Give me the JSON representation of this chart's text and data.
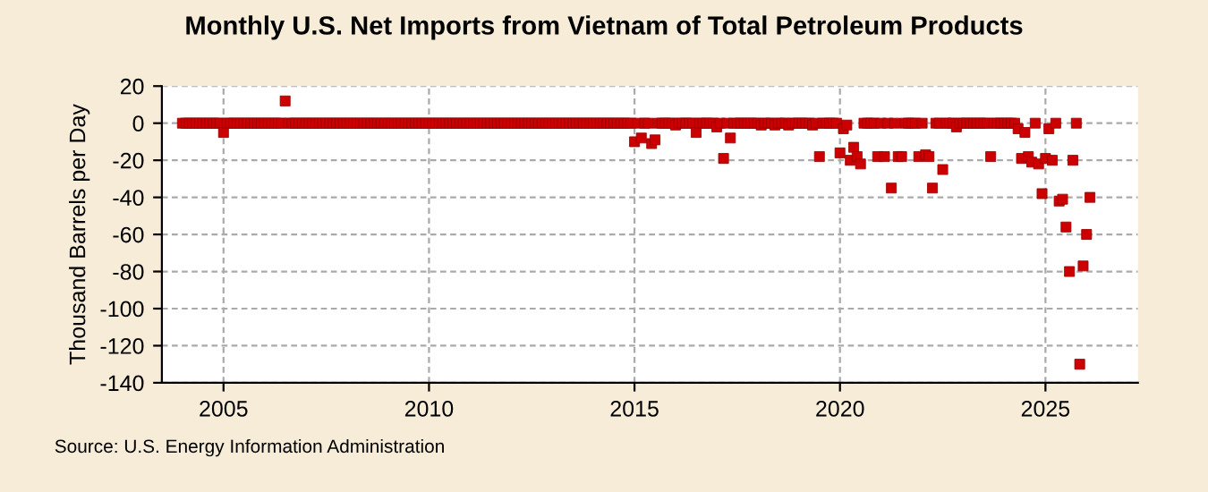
{
  "chart_data": {
    "type": "scatter",
    "title": "Monthly U.S. Net Imports from Vietnam of Total Petroleum Products",
    "ylabel": "Thousand Barrels per Day",
    "annotations": [
      "Source: U.S. Energy Information Administration"
    ],
    "xlim": [
      "2003-07",
      "2027-04"
    ],
    "xticks": [
      "2005",
      "2010",
      "2015",
      "2020",
      "2025"
    ],
    "ylim": [
      -140,
      20
    ],
    "yticks": [
      -140,
      -120,
      -100,
      -80,
      -60,
      -40,
      -20,
      0,
      20
    ],
    "grid": true,
    "marker": "square",
    "series": [
      {
        "color": "#cc0000",
        "x": [
          "2004-01",
          "2004-02",
          "2004-03",
          "2004-04",
          "2004-05",
          "2004-06",
          "2004-07",
          "2004-08",
          "2004-09",
          "2004-10",
          "2004-11",
          "2004-12",
          "2005-01",
          "2005-02",
          "2005-03",
          "2005-04",
          "2005-05",
          "2005-06",
          "2005-07",
          "2005-08",
          "2005-09",
          "2005-10",
          "2005-11",
          "2005-12",
          "2006-01",
          "2006-02",
          "2006-03",
          "2006-04",
          "2006-05",
          "2006-06",
          "2006-07",
          "2006-08",
          "2006-09",
          "2006-10",
          "2006-11",
          "2006-12",
          "2007-01",
          "2007-02",
          "2007-03",
          "2007-04",
          "2007-05",
          "2007-06",
          "2007-07",
          "2007-08",
          "2007-09",
          "2007-10",
          "2007-11",
          "2007-12",
          "2008-01",
          "2008-02",
          "2008-03",
          "2008-04",
          "2008-05",
          "2008-06",
          "2008-07",
          "2008-08",
          "2008-09",
          "2008-10",
          "2008-11",
          "2008-12",
          "2009-01",
          "2009-02",
          "2009-03",
          "2009-04",
          "2009-05",
          "2009-06",
          "2009-07",
          "2009-08",
          "2009-09",
          "2009-10",
          "2009-11",
          "2009-12",
          "2010-01",
          "2010-02",
          "2010-03",
          "2010-04",
          "2010-05",
          "2010-06",
          "2010-07",
          "2010-08",
          "2010-09",
          "2010-10",
          "2010-11",
          "2010-12",
          "2011-01",
          "2011-02",
          "2011-03",
          "2011-04",
          "2011-05",
          "2011-06",
          "2011-07",
          "2011-08",
          "2011-09",
          "2011-10",
          "2011-11",
          "2011-12",
          "2012-01",
          "2012-02",
          "2012-03",
          "2012-04",
          "2012-05",
          "2012-06",
          "2012-07",
          "2012-08",
          "2012-09",
          "2012-10",
          "2012-11",
          "2012-12",
          "2013-01",
          "2013-02",
          "2013-03",
          "2013-04",
          "2013-05",
          "2013-06",
          "2013-07",
          "2013-08",
          "2013-09",
          "2013-10",
          "2013-11",
          "2013-12",
          "2014-01",
          "2014-02",
          "2014-03",
          "2014-04",
          "2014-05",
          "2014-06",
          "2014-07",
          "2014-08",
          "2014-09",
          "2014-10",
          "2014-11",
          "2014-12",
          "2015-01",
          "2015-02",
          "2015-03",
          "2015-04",
          "2015-05",
          "2015-06",
          "2015-07",
          "2015-08",
          "2015-09",
          "2015-10",
          "2015-11",
          "2015-12",
          "2016-01",
          "2016-02",
          "2016-03",
          "2016-04",
          "2016-05",
          "2016-06",
          "2016-07",
          "2016-08",
          "2016-09",
          "2016-10",
          "2016-11",
          "2016-12",
          "2017-01",
          "2017-02",
          "2017-03",
          "2017-04",
          "2017-05",
          "2017-06",
          "2017-07",
          "2017-08",
          "2017-09",
          "2017-10",
          "2017-11",
          "2017-12",
          "2018-01",
          "2018-02",
          "2018-03",
          "2018-04",
          "2018-05",
          "2018-06",
          "2018-07",
          "2018-08",
          "2018-09",
          "2018-10",
          "2018-11",
          "2018-12",
          "2019-01",
          "2019-02",
          "2019-03",
          "2019-04",
          "2019-05",
          "2019-06",
          "2019-07",
          "2019-08",
          "2019-09",
          "2019-10",
          "2019-11",
          "2019-12",
          "2020-01",
          "2020-02",
          "2020-03",
          "2020-04",
          "2020-05",
          "2020-06",
          "2020-07",
          "2020-08",
          "2020-09",
          "2020-10",
          "2020-11",
          "2020-12",
          "2021-01",
          "2021-02",
          "2021-03",
          "2021-04",
          "2021-05",
          "2021-06",
          "2021-07",
          "2021-08",
          "2021-09",
          "2021-10",
          "2021-11",
          "2021-12",
          "2022-01",
          "2022-02",
          "2022-03",
          "2022-04",
          "2022-05",
          "2022-06",
          "2022-07",
          "2022-08",
          "2022-09",
          "2022-10",
          "2022-11",
          "2022-12",
          "2023-01",
          "2023-02",
          "2023-03",
          "2023-04",
          "2023-05",
          "2023-06",
          "2023-07",
          "2023-08",
          "2023-09",
          "2023-10",
          "2023-11",
          "2023-12",
          "2024-01",
          "2024-02",
          "2024-03",
          "2024-04",
          "2024-05",
          "2024-06",
          "2024-07",
          "2024-08",
          "2024-09",
          "2024-10",
          "2024-11",
          "2024-12",
          "2025-01",
          "2025-02",
          "2025-03",
          "2025-04",
          "2025-05",
          "2025-06",
          "2025-07",
          "2025-08",
          "2025-09",
          "2025-10",
          "2025-11",
          "2025-12",
          "2026-01",
          "2026-02"
        ],
        "values": [
          0,
          0,
          0,
          0,
          0,
          0,
          0,
          0,
          0,
          0,
          0,
          0,
          -5,
          0,
          0,
          0,
          0,
          0,
          0,
          0,
          0,
          0,
          0,
          0,
          0,
          0,
          0,
          0,
          0,
          0,
          12,
          0,
          0,
          0,
          0,
          0,
          0,
          0,
          0,
          0,
          0,
          0,
          0,
          0,
          0,
          0,
          0,
          0,
          0,
          0,
          0,
          0,
          0,
          0,
          0,
          0,
          0,
          0,
          0,
          0,
          0,
          0,
          0,
          0,
          0,
          0,
          0,
          0,
          0,
          0,
          0,
          0,
          0,
          0,
          0,
          0,
          0,
          0,
          0,
          0,
          0,
          0,
          0,
          0,
          0,
          0,
          0,
          0,
          0,
          0,
          0,
          0,
          0,
          0,
          0,
          0,
          0,
          0,
          0,
          0,
          0,
          0,
          0,
          0,
          0,
          0,
          0,
          0,
          0,
          0,
          0,
          0,
          0,
          0,
          0,
          0,
          0,
          0,
          0,
          0,
          0,
          0,
          0,
          0,
          0,
          0,
          0,
          0,
          0,
          0,
          0,
          0,
          -10,
          0,
          -8,
          0,
          0,
          -11,
          -9,
          0,
          0,
          0,
          0,
          0,
          -1,
          0,
          0,
          0,
          0,
          0,
          -5,
          0,
          0,
          0,
          0,
          0,
          -2,
          0,
          -19,
          0,
          -8,
          0,
          0,
          0,
          0,
          0,
          0,
          0,
          0,
          -1,
          0,
          0,
          0,
          -1,
          0,
          0,
          0,
          -1,
          0,
          0,
          0,
          0,
          0,
          0,
          -1,
          0,
          -18,
          0,
          0,
          0,
          0,
          0,
          -16,
          -3,
          -1,
          -20,
          -13,
          -18,
          -22,
          0,
          0,
          0,
          0,
          -18,
          0,
          -18,
          0,
          -35,
          0,
          -18,
          -18,
          0,
          0,
          0,
          0,
          -18,
          0,
          -17,
          -18,
          -35,
          0,
          0,
          -25,
          0,
          0,
          0,
          -2,
          0,
          0,
          0,
          0,
          0,
          0,
          0,
          0,
          0,
          -18,
          0,
          0,
          0,
          0,
          0,
          0,
          0,
          -3,
          -19,
          -5,
          -18,
          -21,
          0,
          -22,
          -38,
          -19,
          -3,
          -20,
          0,
          -42,
          -41,
          -56,
          -80,
          -20,
          0,
          -130,
          -77,
          -60,
          -40
        ]
      }
    ]
  }
}
